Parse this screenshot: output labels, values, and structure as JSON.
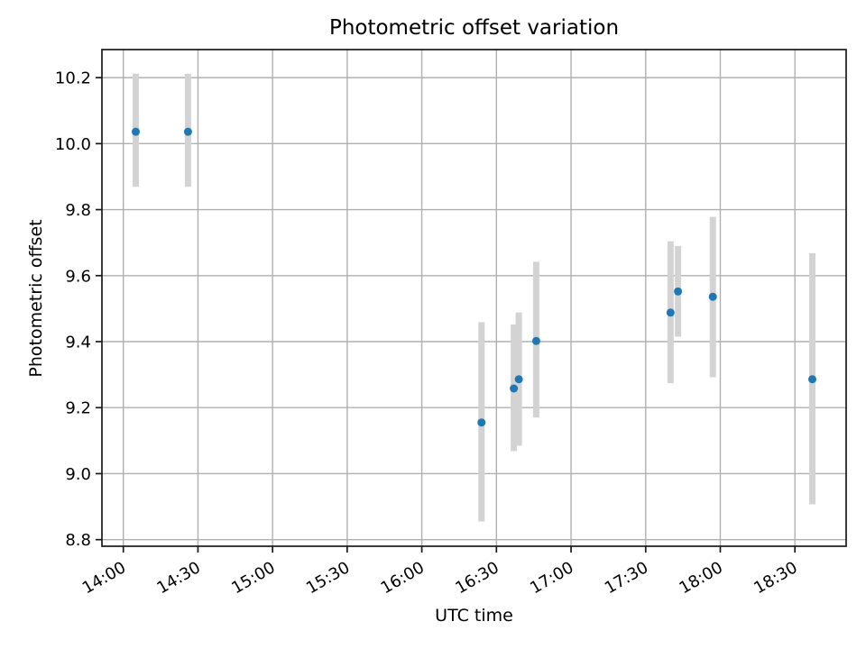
{
  "chart_data": {
    "type": "scatter",
    "title": "Photometric offset variation",
    "xlabel": "UTC time",
    "ylabel": "Photometric offset",
    "x_ticks": [
      "14:00",
      "14:30",
      "15:00",
      "15:30",
      "16:00",
      "16:30",
      "17:00",
      "17:30",
      "18:00",
      "18:30"
    ],
    "y_ticks": [
      8.8,
      9.0,
      9.2,
      9.4,
      9.6,
      9.8,
      10.0,
      10.2
    ],
    "xlim_minutes": [
      831.4,
      1130.6
    ],
    "ylim": [
      8.78,
      10.285
    ],
    "grid": true,
    "legend": "none",
    "marker_color": "#1f77b4",
    "errorbar_color": "#d3d3d3",
    "grid_color": "#b0b0b0",
    "axis_color": "#1a1a1a",
    "points": [
      {
        "time": "14:05",
        "y": 10.036,
        "y_lo": 9.869,
        "y_hi": 10.212
      },
      {
        "time": "14:26",
        "y": 10.036,
        "y_lo": 9.869,
        "y_hi": 10.212
      },
      {
        "time": "16:24",
        "y": 9.155,
        "y_lo": 8.855,
        "y_hi": 9.459
      },
      {
        "time": "16:37",
        "y": 9.258,
        "y_lo": 9.068,
        "y_hi": 9.452
      },
      {
        "time": "16:39",
        "y": 9.286,
        "y_lo": 9.085,
        "y_hi": 9.488
      },
      {
        "time": "16:46",
        "y": 9.402,
        "y_lo": 9.17,
        "y_hi": 9.642
      },
      {
        "time": "17:40",
        "y": 9.488,
        "y_lo": 9.274,
        "y_hi": 9.704
      },
      {
        "time": "17:43",
        "y": 9.552,
        "y_lo": 9.415,
        "y_hi": 9.69
      },
      {
        "time": "17:57",
        "y": 9.536,
        "y_lo": 9.292,
        "y_hi": 9.778
      },
      {
        "time": "18:37",
        "y": 9.286,
        "y_lo": 8.907,
        "y_hi": 9.668
      }
    ]
  }
}
